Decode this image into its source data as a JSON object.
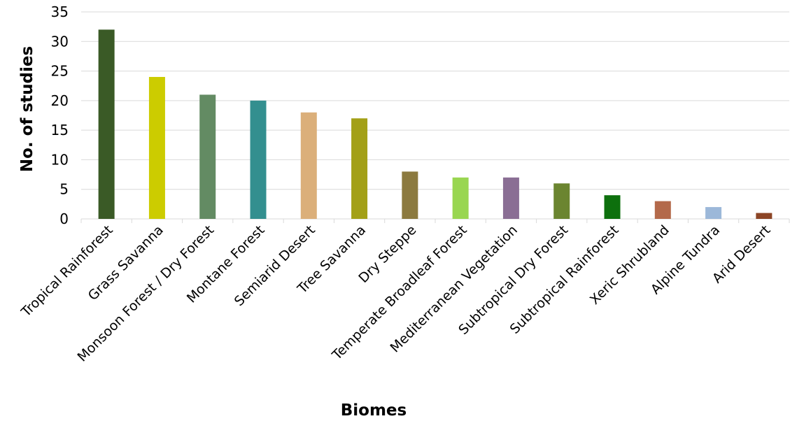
{
  "chart_data": {
    "type": "bar",
    "title": "",
    "xlabel": "Biomes",
    "ylabel": "No. of studies",
    "ylim": [
      0,
      35
    ],
    "yticks": [
      0,
      5,
      10,
      15,
      20,
      25,
      30,
      35
    ],
    "grid": true,
    "legend": "none",
    "categories": [
      "Tropical Rainforest",
      "Grass Savanna",
      "Monsoon Forest / Dry Forest",
      "Montane Forest",
      "Semiarid Desert",
      "Tree Savanna",
      "Dry Steppe",
      "Temperate Broadleaf Forest",
      "Mediterranean Vegetation",
      "Subtropical Dry Forest",
      "Subtropical Rainforest",
      "Xeric Shrubland",
      "Alpine Tundra",
      "Arid Desert"
    ],
    "values": [
      32,
      24,
      21,
      20,
      18,
      17,
      8,
      7,
      7,
      6,
      4,
      3,
      2,
      1
    ],
    "colors": [
      "#3a5a26",
      "#cccc00",
      "#638b63",
      "#338f8f",
      "#dbaf7a",
      "#a3a017",
      "#8c7a3f",
      "#99d651",
      "#8a6e94",
      "#6b8530",
      "#0d700d",
      "#b3694a",
      "#9cb8d9",
      "#8c4526"
    ]
  }
}
